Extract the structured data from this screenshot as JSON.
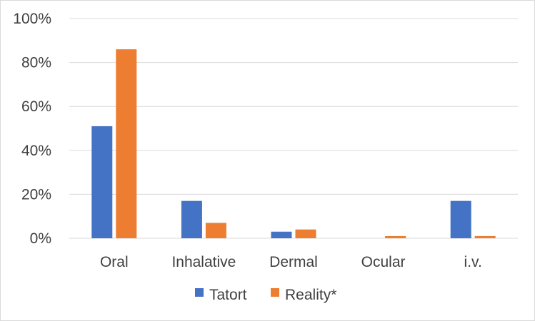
{
  "chart_data": {
    "type": "bar",
    "title": "",
    "xlabel": "",
    "ylabel": "",
    "categories": [
      "Oral",
      "Inhalative",
      "Dermal",
      "Ocular",
      "i.v."
    ],
    "series": [
      {
        "name": "Tatort",
        "color": "#4472c4",
        "values": [
          51,
          17,
          3,
          0,
          17
        ]
      },
      {
        "name": "Reality*",
        "color": "#ed7d31",
        "values": [
          86,
          7,
          4,
          1,
          1
        ]
      }
    ],
    "ylim": [
      0,
      100
    ],
    "yticks": [
      0,
      20,
      40,
      60,
      80,
      100
    ],
    "ytick_labels": [
      "0%",
      "20%",
      "40%",
      "60%",
      "80%",
      "100%"
    ],
    "grid": true,
    "legend_position": "bottom"
  }
}
